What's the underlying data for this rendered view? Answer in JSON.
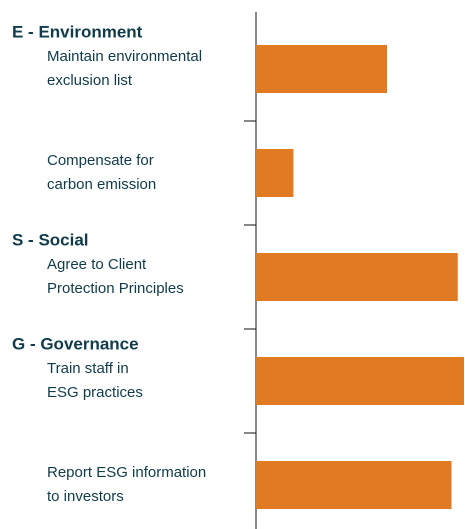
{
  "chart_data": {
    "type": "bar",
    "orientation": "horizontal",
    "group_labels": [
      "E - Environment",
      null,
      "S - Social",
      "G - Governance",
      null
    ],
    "categories": [
      [
        "Maintain environmental",
        "exclusion list"
      ],
      [
        "Compensate for",
        "carbon emission"
      ],
      [
        "Agree to Client",
        "Protection Principles"
      ],
      [
        "Train staff in",
        "ESG practices"
      ],
      [
        "Report ESG information",
        "to investors"
      ]
    ],
    "values": [
      63,
      18,
      97,
      100,
      94
    ],
    "color": "#e07b24",
    "xlim": [
      0,
      100
    ]
  }
}
